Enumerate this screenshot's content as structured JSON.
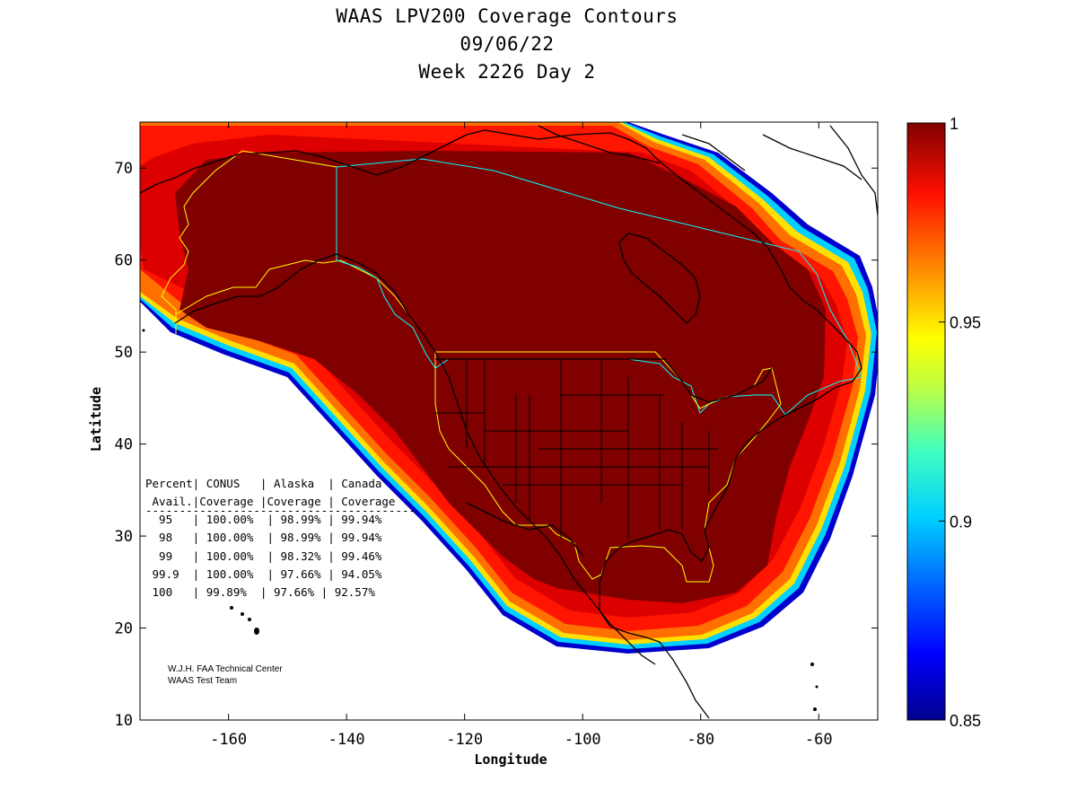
{
  "title": {
    "line1": "WAAS LPV200 Coverage Contours",
    "line2": "09/06/22",
    "line3": "Week 2226 Day 2"
  },
  "axes": {
    "xlabel": "Longitude",
    "ylabel": "Latitude",
    "xlim": [
      -175,
      -50
    ],
    "ylim": [
      10,
      75
    ],
    "xticks": [
      -160,
      -140,
      -120,
      -100,
      -80,
      -60
    ],
    "yticks": [
      10,
      20,
      30,
      40,
      50,
      60,
      70
    ]
  },
  "colorbar": {
    "range": [
      0.85,
      1.0
    ],
    "ticks": [
      0.85,
      0.9,
      0.95,
      1
    ],
    "tick_labels": [
      "0.85",
      "0.9",
      "0.95",
      "1"
    ],
    "colormap": "jet",
    "colors": [
      "#00008f",
      "#0000ff",
      "#0080ff",
      "#00ffff",
      "#80ff80",
      "#ffff00",
      "#ff8000",
      "#ff0000",
      "#800000"
    ]
  },
  "stats_table": {
    "header1": "Percent| CONUS   | Alaska  | Canada",
    "header2": " Avail.|Coverage |Coverage | Coverage",
    "separator": "----------------------------------------",
    "rows": [
      "  95   | 100.00%  | 98.99% | 99.94%",
      "  98   | 100.00%  | 98.99% | 99.94%",
      "  99   | 100.00%  | 98.32% | 99.46%",
      " 99.9  | 100.00%  | 97.66% | 94.05%",
      " 100   | 99.89%  | 97.66% | 92.57%"
    ]
  },
  "credit": {
    "line1": "W.J.H. FAA Technical Center",
    "line2": "WAAS Test Team"
  },
  "chart_data": {
    "type": "heatmap",
    "title": "WAAS LPV200 Coverage Contours",
    "xlabel": "Longitude",
    "ylabel": "Latitude",
    "xlim": [
      -175,
      -50
    ],
    "ylim": [
      10,
      75
    ],
    "value_range": [
      0.85,
      1.0
    ],
    "coverage_table": {
      "columns": [
        "Percent Avail.",
        "CONUS Coverage",
        "Alaska Coverage",
        "Canada Coverage"
      ],
      "rows": [
        [
          "95",
          "100.00%",
          "98.99%",
          "99.94%"
        ],
        [
          "98",
          "100.00%",
          "98.99%",
          "99.94%"
        ],
        [
          "99",
          "100.00%",
          "98.32%",
          "99.46%"
        ],
        [
          "99.9",
          "100.00%",
          "97.66%",
          "94.05%"
        ],
        [
          "100",
          "99.89%",
          "97.66%",
          "92.57%"
        ]
      ]
    }
  }
}
